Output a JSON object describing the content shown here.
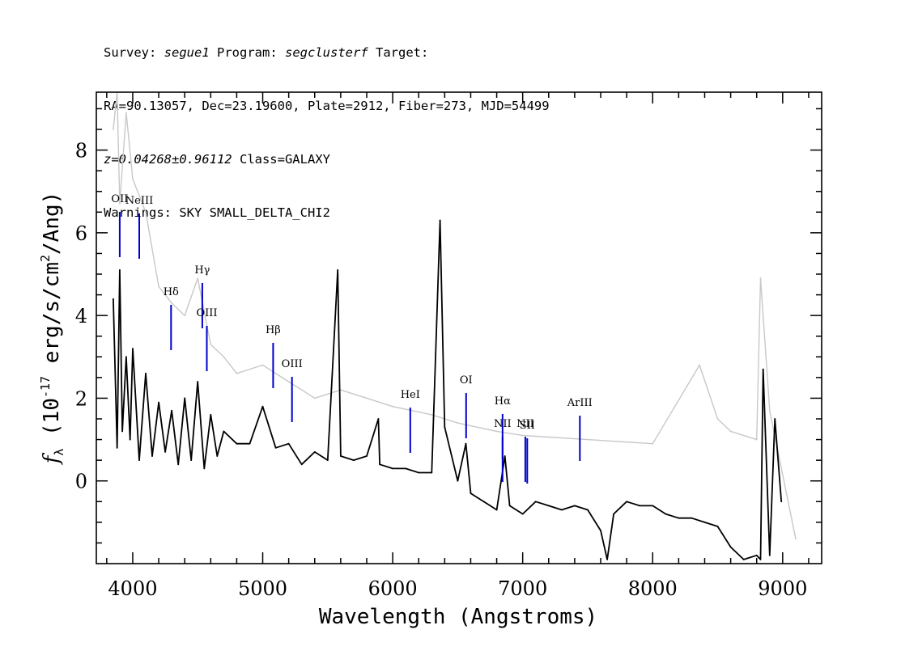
{
  "header": {
    "survey_label": "Survey:",
    "survey": "segue1",
    "program_label": "Program:",
    "program": "segclusterf",
    "target_label": "Target:",
    "line2": "RA=90.13057, Dec=23.19600, Plate=2912, Fiber=273, MJD=54499",
    "z_text": "z=0.04268±0.96112",
    "class_text": "Class=GALAXY",
    "warnings": "Warnings: SKY SMALL_DELTA_CHI2"
  },
  "colors": {
    "flux": "#000000",
    "error": "#c8c8c8",
    "line_marker": "#0000cc",
    "red_marker": "#d02020",
    "axes": "#000000"
  },
  "chart_data": {
    "type": "line",
    "xlabel": "Wavelength (Angstroms)",
    "ylabel": "f_λ (10^-17 erg/s/cm^2/Ang)",
    "xlim": [
      3720,
      9300
    ],
    "ylim": [
      -2.0,
      9.4
    ],
    "xticks": [
      4000,
      5000,
      6000,
      7000,
      8000,
      9000
    ],
    "yticks": [
      0,
      2,
      4,
      6,
      8
    ],
    "x_minor_step": 200,
    "y_minor_step": 0.5,
    "series": [
      {
        "role": "flux",
        "x": [
          3850,
          3880,
          3900,
          3920,
          3950,
          3980,
          4000,
          4050,
          4100,
          4150,
          4200,
          4250,
          4300,
          4350,
          4400,
          4450,
          4500,
          4550,
          4600,
          4650,
          4700,
          4800,
          4900,
          5000,
          5100,
          5200,
          5300,
          5400,
          5500,
          5577,
          5600,
          5700,
          5800,
          5890,
          5900,
          6000,
          6100,
          6200,
          6300,
          6364,
          6400,
          6500,
          6563,
          6600,
          6700,
          6800,
          6863,
          6900,
          7000,
          7100,
          7200,
          7300,
          7400,
          7500,
          7600,
          7650,
          7700,
          7800,
          7900,
          8000,
          8100,
          8200,
          8300,
          8400,
          8500,
          8600,
          8700,
          8800,
          8830,
          8850,
          8900,
          8940,
          8990
        ],
        "y": [
          4.4,
          0.8,
          5.1,
          1.2,
          3.0,
          1.0,
          3.2,
          0.5,
          2.6,
          0.6,
          1.9,
          0.7,
          1.7,
          0.4,
          2.0,
          0.5,
          2.4,
          0.3,
          1.6,
          0.6,
          1.2,
          0.9,
          0.9,
          1.8,
          0.8,
          0.9,
          0.4,
          0.7,
          0.5,
          5.1,
          0.6,
          0.5,
          0.6,
          1.5,
          0.4,
          0.3,
          0.3,
          0.2,
          0.2,
          6.3,
          1.3,
          0.0,
          0.9,
          -0.3,
          -0.5,
          -0.7,
          0.6,
          -0.6,
          -0.8,
          -0.5,
          -0.6,
          -0.7,
          -0.6,
          -0.7,
          -1.2,
          -1.9,
          -0.8,
          -0.5,
          -0.6,
          -0.6,
          -0.8,
          -0.9,
          -0.9,
          -1.0,
          -1.1,
          -1.6,
          -1.9,
          -1.8,
          -1.9,
          2.7,
          -1.8,
          1.5,
          -0.5
        ]
      },
      {
        "role": "error",
        "x": [
          3850,
          3880,
          3900,
          3950,
          4000,
          4100,
          4200,
          4300,
          4400,
          4500,
          4600,
          4700,
          4800,
          5000,
          5200,
          5400,
          5600,
          5800,
          6000,
          6300,
          6500,
          6800,
          7000,
          7500,
          8000,
          8360,
          8500,
          8600,
          8800,
          8830,
          8900,
          9100
        ],
        "y": [
          8.5,
          9.4,
          6.7,
          8.9,
          7.3,
          6.5,
          4.7,
          4.3,
          4.0,
          4.9,
          3.3,
          3.0,
          2.6,
          2.8,
          2.4,
          2.0,
          2.2,
          2.0,
          1.8,
          1.6,
          1.4,
          1.2,
          1.1,
          1.0,
          0.9,
          2.8,
          1.5,
          1.2,
          1.0,
          4.9,
          1.7,
          -1.4
        ]
      }
    ],
    "emission_lines": [
      {
        "label": "OII",
        "wavelength": 3900
      },
      {
        "label": "NeIII",
        "wavelength": 4050
      },
      {
        "label": "Hδ",
        "wavelength": 4295
      },
      {
        "label": "Hγ",
        "wavelength": 4535
      },
      {
        "label": "OIII",
        "wavelength": 4570
      },
      {
        "label": "Hβ",
        "wavelength": 5080
      },
      {
        "label": "OIII",
        "wavelength": 5225
      },
      {
        "label": "HeI",
        "wavelength": 6135
      },
      {
        "label": "OI",
        "wavelength": 6565
      },
      {
        "label": "NII",
        "wavelength": 6845
      },
      {
        "label": "Hα",
        "wavelength": 6845
      },
      {
        "label": "NII",
        "wavelength": 7020
      },
      {
        "label": "SII",
        "wavelength": 7035
      },
      {
        "label": "ArIII",
        "wavelength": 7440
      }
    ]
  }
}
